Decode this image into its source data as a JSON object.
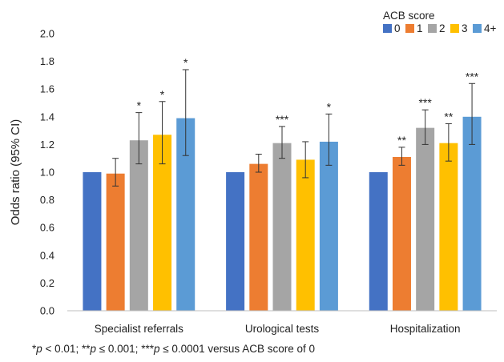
{
  "chart_data": {
    "type": "bar",
    "ylabel": "Odds ratio (95% CI)",
    "ylim": [
      0.0,
      2.0
    ],
    "yticks": [
      "0.0",
      "0.2",
      "0.4",
      "0.6",
      "0.8",
      "1.0",
      "1.2",
      "1.4",
      "1.6",
      "1.8",
      "2.0"
    ],
    "categories": [
      "Specialist referrals",
      "Urological tests",
      "Hospitalization"
    ],
    "legend_title": "ACB score",
    "legend_position": "top-right",
    "series": [
      {
        "name": "0",
        "color": "#4472C4",
        "values": [
          1.0,
          1.0,
          1.0
        ],
        "ci_low": [
          null,
          null,
          null
        ],
        "ci_high": [
          null,
          null,
          null
        ],
        "sig": [
          "",
          "",
          ""
        ]
      },
      {
        "name": "1",
        "color": "#ED7D31",
        "values": [
          0.99,
          1.06,
          1.11
        ],
        "ci_low": [
          0.9,
          1.0,
          1.05
        ],
        "ci_high": [
          1.1,
          1.13,
          1.18
        ],
        "sig": [
          "",
          "",
          "**"
        ]
      },
      {
        "name": "2",
        "color": "#A5A5A5",
        "values": [
          1.23,
          1.21,
          1.32
        ],
        "ci_low": [
          1.06,
          1.1,
          1.2
        ],
        "ci_high": [
          1.43,
          1.33,
          1.45
        ],
        "sig": [
          "*",
          "***",
          "***"
        ]
      },
      {
        "name": "3",
        "color": "#FFC000",
        "values": [
          1.27,
          1.09,
          1.21
        ],
        "ci_low": [
          1.06,
          0.96,
          1.08
        ],
        "ci_high": [
          1.51,
          1.22,
          1.35
        ],
        "sig": [
          "*",
          "",
          "**"
        ]
      },
      {
        "name": "4+",
        "color": "#5B9BD5",
        "values": [
          1.39,
          1.22,
          1.4
        ],
        "ci_low": [
          1.12,
          1.05,
          1.2
        ],
        "ci_high": [
          1.74,
          1.42,
          1.64
        ],
        "sig": [
          "*",
          "*",
          "***"
        ]
      }
    ]
  },
  "footnote": {
    "p1_sym": "*",
    "p1_var": "p",
    "p1_rest": " < 0.01; ",
    "p2_sym": "**",
    "p2_var": "p",
    "p2_rest": " ≤ 0.001; ",
    "p3_sym": "***",
    "p3_var": "p",
    "p3_rest": " ≤ 0.0001 versus ACB score of 0"
  }
}
